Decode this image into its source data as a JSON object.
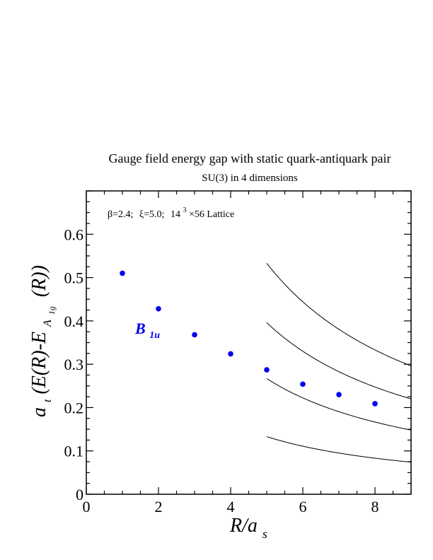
{
  "chart_data": {
    "type": "scatter",
    "title": "Gauge field energy gap with static quark-antiquark pair",
    "subtitle": "SU(3) in 4 dimensions",
    "xlabel": {
      "main": "R/a",
      "sub": "s"
    },
    "ylabel": {
      "prefix": "a",
      "prefix_sub": "t",
      "body": "(E(R)-E",
      "e_sub": "A",
      "e_subsub": "1g",
      "tail": "(R))"
    },
    "xlim": [
      0,
      9
    ],
    "ylim": [
      0,
      0.7
    ],
    "x_ticks": [
      "0",
      "2",
      "4",
      "6",
      "8"
    ],
    "y_ticks": [
      "0",
      "0.1",
      "0.2",
      "0.3",
      "0.4",
      "0.5",
      "0.6"
    ],
    "grid": false,
    "annotation": {
      "beta": "β=2.4;",
      "xi": "ξ=5.0;",
      "lattice_base": "14",
      "lattice_exp": "3",
      "lattice_rest": "×56 Lattice"
    },
    "series": [
      {
        "name": "B",
        "name_sub": "1u",
        "color": "#0000ee",
        "x": [
          1,
          2,
          3,
          4,
          5,
          6,
          7,
          8
        ],
        "y": [
          0.51,
          0.428,
          0.368,
          0.324,
          0.287,
          0.254,
          0.23,
          0.209
        ]
      }
    ],
    "curves": [
      {
        "color": "#000000",
        "x_range": [
          5,
          9
        ],
        "y_at_5": 0.533,
        "y_at_9": 0.296
      },
      {
        "color": "#000000",
        "x_range": [
          5,
          9
        ],
        "y_at_5": 0.396,
        "y_at_9": 0.22
      },
      {
        "color": "#000000",
        "x_range": [
          5,
          9
        ],
        "y_at_5": 0.267,
        "y_at_9": 0.148
      },
      {
        "color": "#000000",
        "x_range": [
          5,
          9
        ],
        "y_at_5": 0.133,
        "y_at_9": 0.074
      }
    ]
  }
}
